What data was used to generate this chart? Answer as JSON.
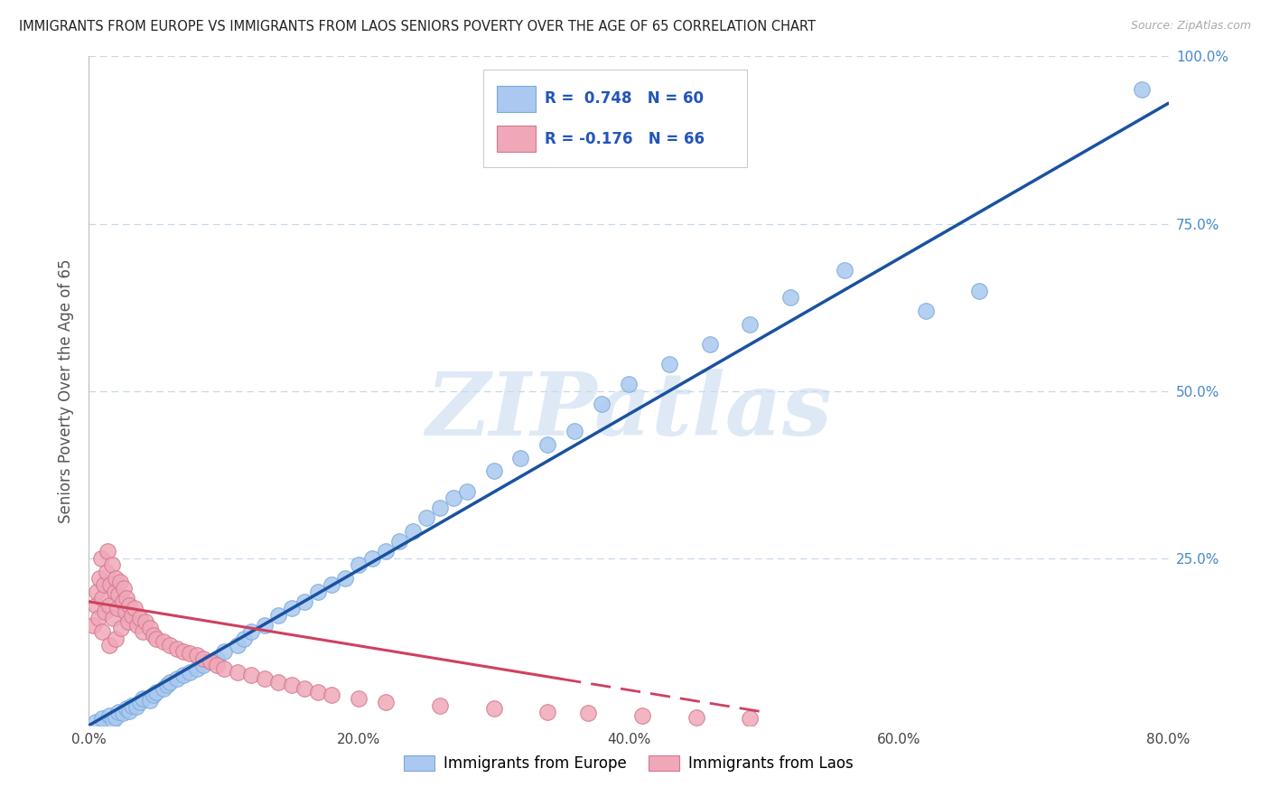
{
  "title": "IMMIGRANTS FROM EUROPE VS IMMIGRANTS FROM LAOS SENIORS POVERTY OVER THE AGE OF 65 CORRELATION CHART",
  "source": "Source: ZipAtlas.com",
  "ylabel": "Seniors Poverty Over the Age of 65",
  "watermark": "ZIPatlas",
  "r1": 0.748,
  "n1": 60,
  "r2": -0.176,
  "n2": 66,
  "xlim": [
    0.0,
    0.8
  ],
  "ylim": [
    0.0,
    1.0
  ],
  "xticks": [
    0.0,
    0.2,
    0.4,
    0.6,
    0.8
  ],
  "xticklabels": [
    "0.0%",
    "20.0%",
    "40.0%",
    "60.0%",
    "80.0%"
  ],
  "yticks": [
    0.0,
    0.25,
    0.5,
    0.75,
    1.0
  ],
  "yticklabels": [
    "",
    "25.0%",
    "50.0%",
    "75.0%",
    "100.0%"
  ],
  "color_blue": "#aac8f0",
  "color_pink": "#f0a8b8",
  "edgecolor_blue": "#7aaad8",
  "edgecolor_pink": "#d07890",
  "trend_blue": "#1a52a0",
  "trend_pink": "#d04060",
  "bg_color": "#ffffff",
  "grid_color": "#c8d8e8",
  "blue_scatter_x": [
    0.005,
    0.01,
    0.015,
    0.018,
    0.02,
    0.022,
    0.025,
    0.028,
    0.03,
    0.032,
    0.035,
    0.038,
    0.04,
    0.045,
    0.048,
    0.05,
    0.055,
    0.058,
    0.06,
    0.065,
    0.07,
    0.075,
    0.08,
    0.085,
    0.09,
    0.095,
    0.1,
    0.11,
    0.115,
    0.12,
    0.13,
    0.14,
    0.15,
    0.16,
    0.17,
    0.18,
    0.19,
    0.2,
    0.21,
    0.22,
    0.23,
    0.24,
    0.25,
    0.26,
    0.27,
    0.28,
    0.3,
    0.32,
    0.34,
    0.36,
    0.38,
    0.4,
    0.43,
    0.46,
    0.49,
    0.52,
    0.56,
    0.62,
    0.66,
    0.78
  ],
  "blue_scatter_y": [
    0.005,
    0.01,
    0.015,
    0.008,
    0.012,
    0.02,
    0.018,
    0.025,
    0.022,
    0.03,
    0.028,
    0.035,
    0.04,
    0.038,
    0.045,
    0.05,
    0.055,
    0.06,
    0.065,
    0.07,
    0.075,
    0.08,
    0.085,
    0.09,
    0.095,
    0.1,
    0.11,
    0.12,
    0.13,
    0.14,
    0.15,
    0.165,
    0.175,
    0.185,
    0.2,
    0.21,
    0.22,
    0.24,
    0.25,
    0.26,
    0.275,
    0.29,
    0.31,
    0.325,
    0.34,
    0.35,
    0.38,
    0.4,
    0.42,
    0.44,
    0.48,
    0.51,
    0.54,
    0.57,
    0.6,
    0.64,
    0.68,
    0.62,
    0.65,
    0.95
  ],
  "pink_scatter_x": [
    0.003,
    0.005,
    0.006,
    0.007,
    0.008,
    0.009,
    0.01,
    0.01,
    0.011,
    0.012,
    0.013,
    0.014,
    0.015,
    0.015,
    0.016,
    0.017,
    0.018,
    0.019,
    0.02,
    0.02,
    0.021,
    0.022,
    0.023,
    0.024,
    0.025,
    0.026,
    0.027,
    0.028,
    0.029,
    0.03,
    0.032,
    0.034,
    0.036,
    0.038,
    0.04,
    0.042,
    0.045,
    0.048,
    0.05,
    0.055,
    0.06,
    0.065,
    0.07,
    0.075,
    0.08,
    0.085,
    0.09,
    0.095,
    0.1,
    0.11,
    0.12,
    0.13,
    0.14,
    0.15,
    0.16,
    0.17,
    0.18,
    0.2,
    0.22,
    0.26,
    0.3,
    0.34,
    0.37,
    0.41,
    0.45,
    0.49
  ],
  "pink_scatter_y": [
    0.15,
    0.18,
    0.2,
    0.16,
    0.22,
    0.25,
    0.14,
    0.19,
    0.21,
    0.17,
    0.23,
    0.26,
    0.12,
    0.18,
    0.21,
    0.24,
    0.16,
    0.2,
    0.13,
    0.22,
    0.175,
    0.195,
    0.215,
    0.145,
    0.185,
    0.205,
    0.17,
    0.19,
    0.155,
    0.18,
    0.165,
    0.175,
    0.15,
    0.16,
    0.14,
    0.155,
    0.145,
    0.135,
    0.13,
    0.125,
    0.12,
    0.115,
    0.11,
    0.108,
    0.105,
    0.1,
    0.095,
    0.09,
    0.085,
    0.08,
    0.075,
    0.07,
    0.065,
    0.06,
    0.055,
    0.05,
    0.045,
    0.04,
    0.035,
    0.03,
    0.025,
    0.02,
    0.018,
    0.015,
    0.012,
    0.01
  ],
  "blue_trend_x0": 0.0,
  "blue_trend_y0": 0.0,
  "blue_trend_x1": 0.8,
  "blue_trend_y1": 0.93,
  "pink_trend_x0": 0.0,
  "pink_trend_y0": 0.185,
  "pink_trend_x1": 0.5,
  "pink_trend_y1": 0.02,
  "bottom_legend": [
    "Immigrants from Europe",
    "Immigrants from Laos"
  ]
}
